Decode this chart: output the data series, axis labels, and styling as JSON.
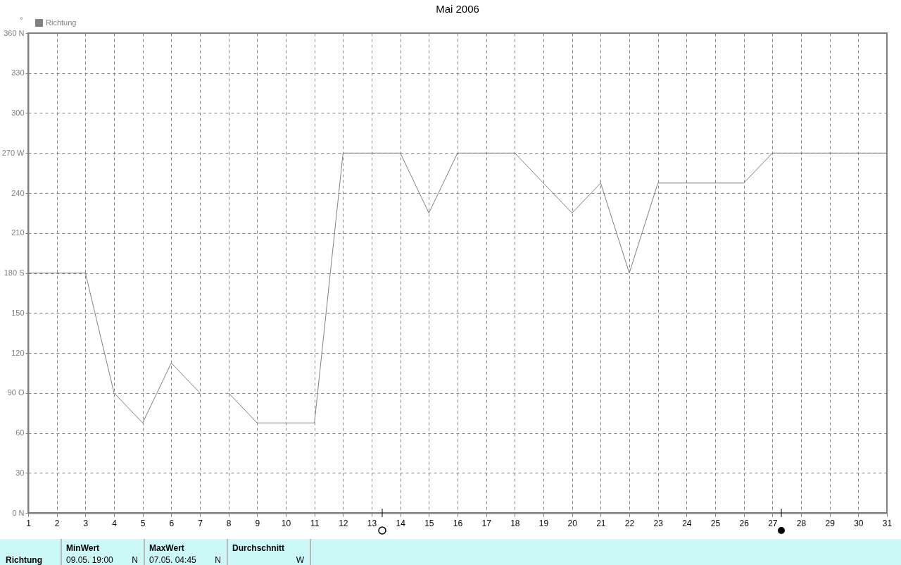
{
  "chart_data": {
    "type": "line",
    "title": "Mai 2006",
    "ylabel": "°",
    "x": [
      1,
      2,
      3,
      4,
      5,
      6,
      7,
      7.5,
      8,
      9,
      10,
      11,
      12,
      13,
      14,
      15,
      16,
      17,
      18,
      19,
      20,
      21,
      22,
      23,
      24,
      25,
      26,
      27,
      28,
      29,
      30,
      31
    ],
    "series": [
      {
        "name": "Richtung",
        "color": "#808080",
        "values": [
          180,
          180,
          180,
          90,
          67.5,
          112.5,
          90,
          null,
          90,
          67.5,
          67.5,
          67.5,
          270,
          270,
          270,
          225,
          270,
          270,
          270,
          247.5,
          225,
          247.5,
          180,
          247.5,
          247.5,
          247.5,
          247.5,
          270,
          270,
          270,
          270,
          270
        ]
      }
    ],
    "xlim": [
      1,
      31
    ],
    "xticks": [
      1,
      2,
      3,
      4,
      5,
      6,
      7,
      8,
      9,
      10,
      11,
      12,
      13,
      14,
      15,
      16,
      17,
      18,
      19,
      20,
      21,
      22,
      23,
      24,
      25,
      26,
      27,
      28,
      29,
      30,
      31
    ],
    "ylim": [
      0,
      360
    ],
    "yticks": [
      {
        "value": 0,
        "label": "0  N"
      },
      30,
      60,
      {
        "value": 90,
        "label": "90  O"
      },
      120,
      150,
      {
        "value": 180,
        "label": "180 S"
      },
      210,
      240,
      {
        "value": 270,
        "label": "270 W"
      },
      300,
      330,
      {
        "value": 360,
        "label": "360 N"
      }
    ],
    "grid": true,
    "legend": "top left",
    "line_style": "solid",
    "marker": "none",
    "annotations": [
      "Richtung",
      "MinWert",
      "09.05.  19:00",
      "N",
      "MaxWert",
      "07.05.  04:45",
      "N",
      "Durchschnitt",
      "W"
    ]
  }
}
